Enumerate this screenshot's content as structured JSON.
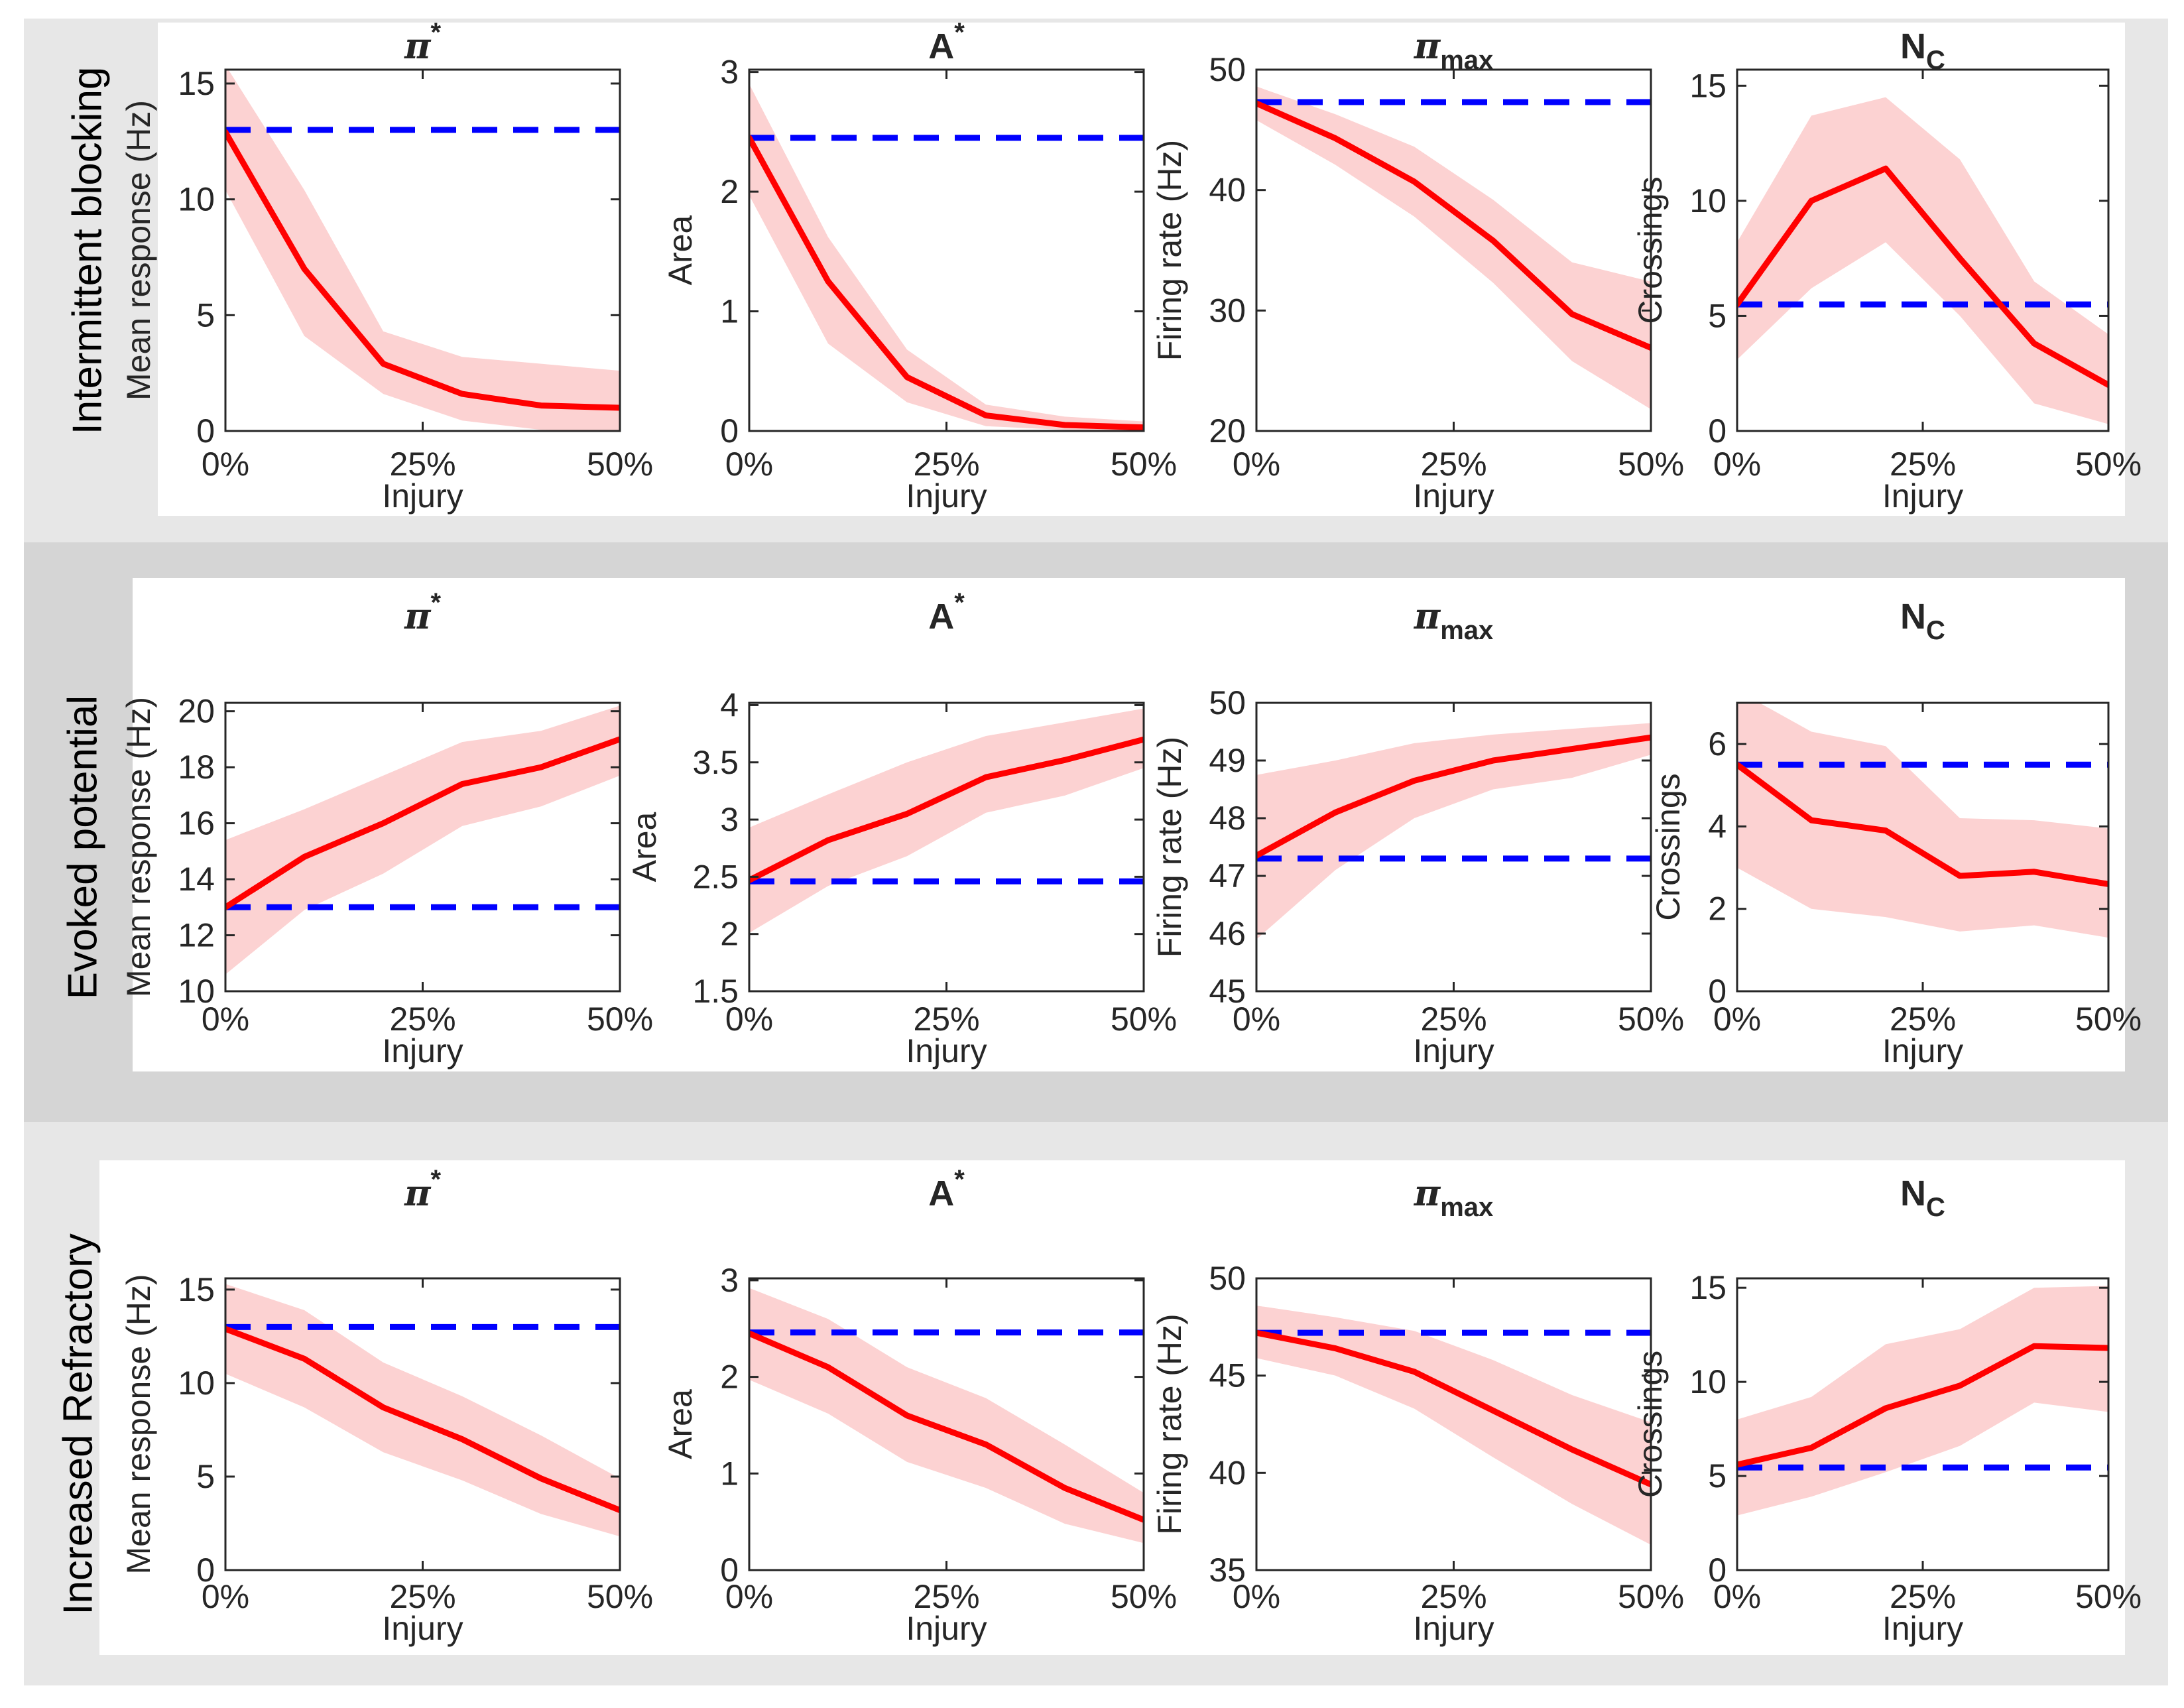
{
  "figure_colors": {
    "page_background": "#ffffff",
    "band_light": "#e7e7e7",
    "band_dark": "#d5d5d5",
    "panel": "#ffffff",
    "mean_line": "#ff0000",
    "confidence_band": "#fcd2d2",
    "baseline_dashed": "#0000ff",
    "axis": "#262626",
    "text": "#262626"
  },
  "chart_data": {
    "type": "line",
    "x_unit": "percent injury",
    "x": [
      0,
      10,
      20,
      30,
      40,
      50
    ],
    "xlim": [
      0,
      50
    ],
    "xticks": [
      0,
      25,
      50
    ],
    "xtick_labels": [
      "0%",
      "25%",
      "50%"
    ],
    "xlabel": "Injury",
    "legend": {
      "mean_line": "injured mean response (red)",
      "confidence_band": "spread around mean (pink)",
      "baseline_dashed": "healthy baseline (blue dashed)"
    },
    "rows": [
      {
        "label": "Intermittent blocking",
        "shade": "light",
        "plots": [
          {
            "title_main": "π",
            "title_style": "greek",
            "title_script": "*",
            "title_script_pos": "sup",
            "ylabel": "Mean response (Hz)",
            "ylim": [
              0,
              15.6
            ],
            "ytick_vals": [
              0,
              5,
              10,
              15
            ],
            "ytick_labels": [
              "0",
              "5",
              "10",
              "15"
            ],
            "mean": [
              12.9,
              7.0,
              2.9,
              1.6,
              1.1,
              1.0
            ],
            "upper": [
              15.8,
              10.4,
              4.3,
              3.2,
              2.9,
              2.6
            ],
            "lower": [
              10.4,
              4.1,
              1.6,
              0.45,
              0.05,
              0.0
            ],
            "baseline": 13.0
          },
          {
            "title_main": "A",
            "title_style": "bold",
            "title_script": "*",
            "title_script_pos": "sup",
            "ylabel": "Area",
            "ylim": [
              0,
              3.02
            ],
            "ytick_vals": [
              0,
              1,
              2,
              3
            ],
            "ytick_labels": [
              "0",
              "1",
              "2",
              "3"
            ],
            "mean": [
              2.45,
              1.25,
              0.45,
              0.13,
              0.05,
              0.03
            ],
            "upper": [
              2.9,
              1.62,
              0.68,
              0.22,
              0.12,
              0.08
            ],
            "lower": [
              1.97,
              0.73,
              0.24,
              0.04,
              0.01,
              0.0
            ],
            "baseline": 2.45
          },
          {
            "title_main": "π",
            "title_style": "greek",
            "title_script": "max",
            "title_script_pos": "sub",
            "ylabel": "Firing rate (Hz)",
            "ylim": [
              20,
              50
            ],
            "ytick_vals": [
              20,
              30,
              40,
              50
            ],
            "ytick_labels": [
              "20",
              "30",
              "40",
              "50"
            ],
            "mean": [
              47.2,
              44.3,
              40.7,
              35.8,
              29.7,
              26.9
            ],
            "upper": [
              48.6,
              46.3,
              43.6,
              39.2,
              34.0,
              32.4
            ],
            "lower": [
              45.8,
              42.1,
              37.8,
              32.3,
              25.8,
              21.8
            ],
            "baseline": 47.3
          },
          {
            "title_main": "N",
            "title_style": "bold",
            "title_script": "C",
            "title_script_pos": "sub",
            "ylabel": "Crossings",
            "ylim": [
              0,
              15.7
            ],
            "ytick_vals": [
              0,
              5,
              10,
              15
            ],
            "ytick_labels": [
              "0",
              "5",
              "10",
              "15"
            ],
            "mean": [
              5.5,
              10.0,
              11.4,
              7.5,
              3.8,
              2.0
            ],
            "upper": [
              8.2,
              13.7,
              14.5,
              11.8,
              6.5,
              4.2
            ],
            "lower": [
              3.1,
              6.2,
              8.2,
              5.0,
              1.2,
              0.3
            ],
            "baseline": 5.5
          }
        ]
      },
      {
        "label": "Evoked potential",
        "shade": "dark",
        "plots": [
          {
            "title_main": "π",
            "title_style": "greek",
            "title_script": "*",
            "title_script_pos": "sup",
            "ylabel": "Mean response (Hz)",
            "ylim": [
              10,
              20.3
            ],
            "ytick_vals": [
              10,
              12,
              14,
              16,
              18,
              20
            ],
            "ytick_labels": [
              "10",
              "12",
              "14",
              "16",
              "18",
              "20"
            ],
            "mean": [
              13.0,
              14.8,
              16.0,
              17.4,
              18.0,
              19.0
            ],
            "upper": [
              15.4,
              16.5,
              17.7,
              18.9,
              19.3,
              20.2
            ],
            "lower": [
              10.6,
              12.9,
              14.2,
              15.9,
              16.6,
              17.7
            ],
            "baseline": 13.0
          },
          {
            "title_main": "A",
            "title_style": "bold",
            "title_script": "*",
            "title_script_pos": "sup",
            "ylabel": "Area",
            "ylim": [
              1.5,
              4.02
            ],
            "ytick_vals": [
              1.5,
              2,
              2.5,
              3,
              3.5,
              4
            ],
            "ytick_labels": [
              "1.5",
              "2",
              "2.5",
              "3",
              "3.5",
              "4"
            ],
            "mean": [
              2.47,
              2.82,
              3.05,
              3.37,
              3.52,
              3.7
            ],
            "upper": [
              2.93,
              3.22,
              3.5,
              3.73,
              3.85,
              3.97
            ],
            "lower": [
              2.01,
              2.42,
              2.68,
              3.06,
              3.21,
              3.45
            ],
            "baseline": 2.46
          },
          {
            "title_main": "π",
            "title_style": "greek",
            "title_script": "max",
            "title_script_pos": "sub",
            "ylabel": "Firing rate (Hz)",
            "ylim": [
              45,
              50
            ],
            "ytick_vals": [
              45,
              46,
              47,
              48,
              49,
              50
            ],
            "ytick_labels": [
              "45",
              "46",
              "47",
              "48",
              "49",
              "50"
            ],
            "mean": [
              47.35,
              48.1,
              48.65,
              49.0,
              49.2,
              49.4
            ],
            "upper": [
              48.75,
              49.0,
              49.3,
              49.45,
              49.55,
              49.65
            ],
            "lower": [
              45.9,
              47.1,
              48.0,
              48.5,
              48.7,
              49.1
            ],
            "baseline": 47.3
          },
          {
            "title_main": "N",
            "title_style": "bold",
            "title_script": "C",
            "title_script_pos": "sub",
            "ylabel": "Crossings",
            "ylim": [
              0,
              7.0
            ],
            "ytick_vals": [
              0,
              2,
              4,
              6
            ],
            "ytick_labels": [
              "0",
              "2",
              "4",
              "6"
            ],
            "mean": [
              5.5,
              4.15,
              3.9,
              2.8,
              2.9,
              2.6
            ],
            "upper": [
              7.3,
              6.3,
              5.95,
              4.2,
              4.15,
              3.95
            ],
            "lower": [
              3.0,
              2.0,
              1.8,
              1.45,
              1.6,
              1.3
            ],
            "baseline": 5.5
          }
        ]
      },
      {
        "label": "Increased Refractory",
        "shade": "light",
        "plots": [
          {
            "title_main": "π",
            "title_style": "greek",
            "title_script": "*",
            "title_script_pos": "sup",
            "ylabel": "Mean response (Hz)",
            "ylim": [
              0,
              15.6
            ],
            "ytick_vals": [
              0,
              5,
              10,
              15
            ],
            "ytick_labels": [
              "0",
              "5",
              "10",
              "15"
            ],
            "mean": [
              12.9,
              11.3,
              8.7,
              7.0,
              4.9,
              3.2
            ],
            "upper": [
              15.3,
              13.9,
              11.1,
              9.3,
              7.2,
              4.9
            ],
            "lower": [
              10.5,
              8.7,
              6.3,
              4.8,
              3.0,
              1.8
            ],
            "baseline": 13.0
          },
          {
            "title_main": "A",
            "title_style": "bold",
            "title_script": "*",
            "title_script_pos": "sup",
            "ylabel": "Area",
            "ylim": [
              0,
              3.02
            ],
            "ytick_vals": [
              0,
              1,
              2,
              3
            ],
            "ytick_labels": [
              "0",
              "1",
              "2",
              "3"
            ],
            "mean": [
              2.45,
              2.1,
              1.6,
              1.3,
              0.85,
              0.52
            ],
            "upper": [
              2.92,
              2.6,
              2.1,
              1.78,
              1.3,
              0.8
            ],
            "lower": [
              1.97,
              1.62,
              1.12,
              0.85,
              0.48,
              0.28
            ],
            "baseline": 2.46
          },
          {
            "title_main": "π",
            "title_style": "greek",
            "title_script": "max",
            "title_script_pos": "sub",
            "ylabel": "Firing rate (Hz)",
            "ylim": [
              35,
              50
            ],
            "ytick_vals": [
              35,
              40,
              45,
              50
            ],
            "ytick_labels": [
              "35",
              "40",
              "45",
              "50"
            ],
            "mean": [
              47.2,
              46.4,
              45.2,
              43.2,
              41.2,
              39.4
            ],
            "upper": [
              48.6,
              48.0,
              47.3,
              45.8,
              44.0,
              42.6
            ],
            "lower": [
              45.9,
              45.0,
              43.3,
              40.8,
              38.4,
              36.3
            ],
            "baseline": 47.2
          },
          {
            "title_main": "N",
            "title_style": "bold",
            "title_script": "C",
            "title_script_pos": "sub",
            "ylabel": "Crossings",
            "ylim": [
              0,
              15.5
            ],
            "ytick_vals": [
              0,
              5,
              10,
              15
            ],
            "ytick_labels": [
              "0",
              "5",
              "10",
              "15"
            ],
            "mean": [
              5.6,
              6.5,
              8.6,
              9.8,
              11.9,
              11.8
            ],
            "upper": [
              8.0,
              9.2,
              12.0,
              12.8,
              15.0,
              15.1
            ],
            "lower": [
              2.9,
              3.9,
              5.2,
              6.6,
              8.9,
              8.4
            ],
            "baseline": 5.45
          }
        ]
      }
    ]
  }
}
